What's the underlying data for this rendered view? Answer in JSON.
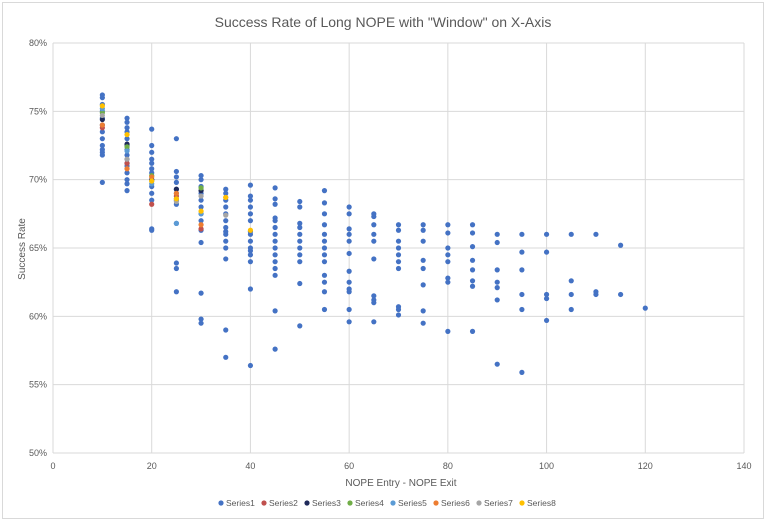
{
  "chart_data": {
    "type": "scatter",
    "title": "Success Rate of Long NOPE with \"Window\" on X-Axis",
    "xlabel": "NOPE Entry - NOPE Exit",
    "ylabel": "Success Rate",
    "xlim": [
      0,
      140
    ],
    "ylim": [
      0.5,
      0.8
    ],
    "xticks": [
      "0",
      "20",
      "40",
      "60",
      "80",
      "100",
      "120",
      "140"
    ],
    "yticks": [
      "50%",
      "55%",
      "60%",
      "65%",
      "70%",
      "75%",
      "80%"
    ],
    "grid": true,
    "legend_position": "bottom",
    "series": [
      {
        "name": "Series1",
        "color": "#4472C4",
        "points": [
          [
            10,
            0.762
          ],
          [
            10,
            0.76
          ],
          [
            10,
            0.755
          ],
          [
            10,
            0.75
          ],
          [
            10,
            0.745
          ],
          [
            10,
            0.74
          ],
          [
            10,
            0.735
          ],
          [
            10,
            0.73
          ],
          [
            10,
            0.725
          ],
          [
            10,
            0.722
          ],
          [
            10,
            0.72
          ],
          [
            10,
            0.718
          ],
          [
            10,
            0.698
          ],
          [
            15,
            0.745
          ],
          [
            15,
            0.742
          ],
          [
            15,
            0.738
          ],
          [
            15,
            0.735
          ],
          [
            15,
            0.73
          ],
          [
            15,
            0.725
          ],
          [
            15,
            0.722
          ],
          [
            15,
            0.718
          ],
          [
            15,
            0.715
          ],
          [
            15,
            0.712
          ],
          [
            15,
            0.71
          ],
          [
            15,
            0.705
          ],
          [
            15,
            0.7
          ],
          [
            15,
            0.697
          ],
          [
            15,
            0.692
          ],
          [
            20,
            0.737
          ],
          [
            20,
            0.725
          ],
          [
            20,
            0.72
          ],
          [
            20,
            0.715
          ],
          [
            20,
            0.712
          ],
          [
            20,
            0.708
          ],
          [
            20,
            0.705
          ],
          [
            20,
            0.7
          ],
          [
            20,
            0.695
          ],
          [
            20,
            0.69
          ],
          [
            20,
            0.685
          ],
          [
            20,
            0.664
          ],
          [
            20,
            0.663
          ],
          [
            25,
            0.73
          ],
          [
            25,
            0.706
          ],
          [
            25,
            0.702
          ],
          [
            25,
            0.698
          ],
          [
            25,
            0.693
          ],
          [
            25,
            0.69
          ],
          [
            25,
            0.685
          ],
          [
            25,
            0.682
          ],
          [
            25,
            0.668
          ],
          [
            25,
            0.639
          ],
          [
            25,
            0.635
          ],
          [
            25,
            0.618
          ],
          [
            30,
            0.703
          ],
          [
            30,
            0.7
          ],
          [
            30,
            0.695
          ],
          [
            30,
            0.69
          ],
          [
            30,
            0.685
          ],
          [
            30,
            0.68
          ],
          [
            30,
            0.675
          ],
          [
            30,
            0.67
          ],
          [
            30,
            0.663
          ],
          [
            30,
            0.654
          ],
          [
            30,
            0.617
          ],
          [
            30,
            0.598
          ],
          [
            30,
            0.595
          ],
          [
            35,
            0.693
          ],
          [
            35,
            0.69
          ],
          [
            35,
            0.685
          ],
          [
            35,
            0.68
          ],
          [
            35,
            0.675
          ],
          [
            35,
            0.67
          ],
          [
            35,
            0.665
          ],
          [
            35,
            0.662
          ],
          [
            35,
            0.66
          ],
          [
            35,
            0.655
          ],
          [
            35,
            0.65
          ],
          [
            35,
            0.642
          ],
          [
            35,
            0.59
          ],
          [
            35,
            0.57
          ],
          [
            40,
            0.696
          ],
          [
            40,
            0.688
          ],
          [
            40,
            0.685
          ],
          [
            40,
            0.68
          ],
          [
            40,
            0.675
          ],
          [
            40,
            0.67
          ],
          [
            40,
            0.662
          ],
          [
            40,
            0.66
          ],
          [
            40,
            0.655
          ],
          [
            40,
            0.65
          ],
          [
            40,
            0.648
          ],
          [
            40,
            0.645
          ],
          [
            40,
            0.64
          ],
          [
            40,
            0.62
          ],
          [
            40,
            0.564
          ],
          [
            45,
            0.694
          ],
          [
            45,
            0.686
          ],
          [
            45,
            0.682
          ],
          [
            45,
            0.672
          ],
          [
            45,
            0.67
          ],
          [
            45,
            0.665
          ],
          [
            45,
            0.66
          ],
          [
            45,
            0.655
          ],
          [
            45,
            0.65
          ],
          [
            45,
            0.645
          ],
          [
            45,
            0.64
          ],
          [
            45,
            0.635
          ],
          [
            45,
            0.63
          ],
          [
            45,
            0.604
          ],
          [
            45,
            0.576
          ],
          [
            50,
            0.684
          ],
          [
            50,
            0.68
          ],
          [
            50,
            0.668
          ],
          [
            50,
            0.665
          ],
          [
            50,
            0.66
          ],
          [
            50,
            0.655
          ],
          [
            50,
            0.65
          ],
          [
            50,
            0.645
          ],
          [
            50,
            0.64
          ],
          [
            50,
            0.624
          ],
          [
            50,
            0.593
          ],
          [
            55,
            0.692
          ],
          [
            55,
            0.683
          ],
          [
            55,
            0.675
          ],
          [
            55,
            0.667
          ],
          [
            55,
            0.66
          ],
          [
            55,
            0.655
          ],
          [
            55,
            0.65
          ],
          [
            55,
            0.645
          ],
          [
            55,
            0.64
          ],
          [
            55,
            0.63
          ],
          [
            55,
            0.625
          ],
          [
            55,
            0.618
          ],
          [
            55,
            0.605
          ],
          [
            60,
            0.68
          ],
          [
            60,
            0.675
          ],
          [
            60,
            0.664
          ],
          [
            60,
            0.66
          ],
          [
            60,
            0.655
          ],
          [
            60,
            0.646
          ],
          [
            60,
            0.633
          ],
          [
            60,
            0.625
          ],
          [
            60,
            0.62
          ],
          [
            60,
            0.618
          ],
          [
            60,
            0.605
          ],
          [
            60,
            0.596
          ],
          [
            65,
            0.675
          ],
          [
            65,
            0.673
          ],
          [
            65,
            0.667
          ],
          [
            65,
            0.66
          ],
          [
            65,
            0.655
          ],
          [
            65,
            0.642
          ],
          [
            65,
            0.615
          ],
          [
            65,
            0.612
          ],
          [
            65,
            0.61
          ],
          [
            65,
            0.596
          ],
          [
            70,
            0.667
          ],
          [
            70,
            0.663
          ],
          [
            70,
            0.655
          ],
          [
            70,
            0.65
          ],
          [
            70,
            0.645
          ],
          [
            70,
            0.64
          ],
          [
            70,
            0.635
          ],
          [
            70,
            0.607
          ],
          [
            70,
            0.605
          ],
          [
            70,
            0.601
          ],
          [
            75,
            0.667
          ],
          [
            75,
            0.663
          ],
          [
            75,
            0.655
          ],
          [
            75,
            0.641
          ],
          [
            75,
            0.635
          ],
          [
            75,
            0.623
          ],
          [
            75,
            0.604
          ],
          [
            75,
            0.595
          ],
          [
            80,
            0.667
          ],
          [
            80,
            0.661
          ],
          [
            80,
            0.65
          ],
          [
            80,
            0.645
          ],
          [
            80,
            0.64
          ],
          [
            80,
            0.628
          ],
          [
            80,
            0.625
          ],
          [
            80,
            0.589
          ],
          [
            85,
            0.667
          ],
          [
            85,
            0.661
          ],
          [
            85,
            0.651
          ],
          [
            85,
            0.641
          ],
          [
            85,
            0.634
          ],
          [
            85,
            0.626
          ],
          [
            85,
            0.622
          ],
          [
            85,
            0.589
          ],
          [
            90,
            0.66
          ],
          [
            90,
            0.654
          ],
          [
            90,
            0.634
          ],
          [
            90,
            0.625
          ],
          [
            90,
            0.621
          ],
          [
            90,
            0.612
          ],
          [
            90,
            0.565
          ],
          [
            95,
            0.66
          ],
          [
            95,
            0.647
          ],
          [
            95,
            0.634
          ],
          [
            95,
            0.616
          ],
          [
            95,
            0.605
          ],
          [
            95,
            0.559
          ],
          [
            100,
            0.66
          ],
          [
            100,
            0.647
          ],
          [
            100,
            0.616
          ],
          [
            100,
            0.613
          ],
          [
            100,
            0.597
          ],
          [
            105,
            0.66
          ],
          [
            105,
            0.626
          ],
          [
            105,
            0.616
          ],
          [
            105,
            0.605
          ],
          [
            110,
            0.66
          ],
          [
            110,
            0.618
          ],
          [
            110,
            0.616
          ],
          [
            115,
            0.652
          ],
          [
            115,
            0.616
          ],
          [
            120,
            0.606
          ]
        ]
      },
      {
        "name": "Series2",
        "color": "#C0504D",
        "points": [
          [
            10,
            0.738
          ],
          [
            15,
            0.712
          ],
          [
            20,
            0.682
          ],
          [
            25,
            0.688
          ],
          [
            30,
            0.664
          ]
        ]
      },
      {
        "name": "Series3",
        "color": "#1F2A5A",
        "points": [
          [
            10,
            0.744
          ],
          [
            15,
            0.726
          ],
          [
            20,
            0.7
          ],
          [
            25,
            0.693
          ],
          [
            30,
            0.692
          ]
        ]
      },
      {
        "name": "Series4",
        "color": "#70AD47",
        "points": [
          [
            10,
            0.749
          ],
          [
            15,
            0.724
          ],
          [
            20,
            0.703
          ],
          [
            25,
            0.686
          ],
          [
            30,
            0.694
          ]
        ]
      },
      {
        "name": "Series5",
        "color": "#5B9BD5",
        "points": [
          [
            10,
            0.752
          ],
          [
            15,
            0.721
          ],
          [
            20,
            0.697
          ],
          [
            25,
            0.668
          ],
          [
            30,
            0.675
          ]
        ]
      },
      {
        "name": "Series6",
        "color": "#ED7D31",
        "points": [
          [
            10,
            0.74
          ],
          [
            15,
            0.708
          ],
          [
            20,
            0.702
          ],
          [
            25,
            0.69
          ],
          [
            30,
            0.667
          ],
          [
            35,
            0.687
          ]
        ]
      },
      {
        "name": "Series7",
        "color": "#A5A5A5",
        "points": [
          [
            10,
            0.747
          ],
          [
            15,
            0.715
          ],
          [
            20,
            0.699
          ],
          [
            25,
            0.684
          ],
          [
            30,
            0.688
          ],
          [
            35,
            0.674
          ]
        ]
      },
      {
        "name": "Series8",
        "color": "#FFC000",
        "points": [
          [
            10,
            0.754
          ],
          [
            15,
            0.733
          ],
          [
            20,
            0.699
          ],
          [
            25,
            0.686
          ],
          [
            30,
            0.677
          ],
          [
            35,
            0.687
          ],
          [
            40,
            0.663
          ]
        ]
      }
    ]
  }
}
